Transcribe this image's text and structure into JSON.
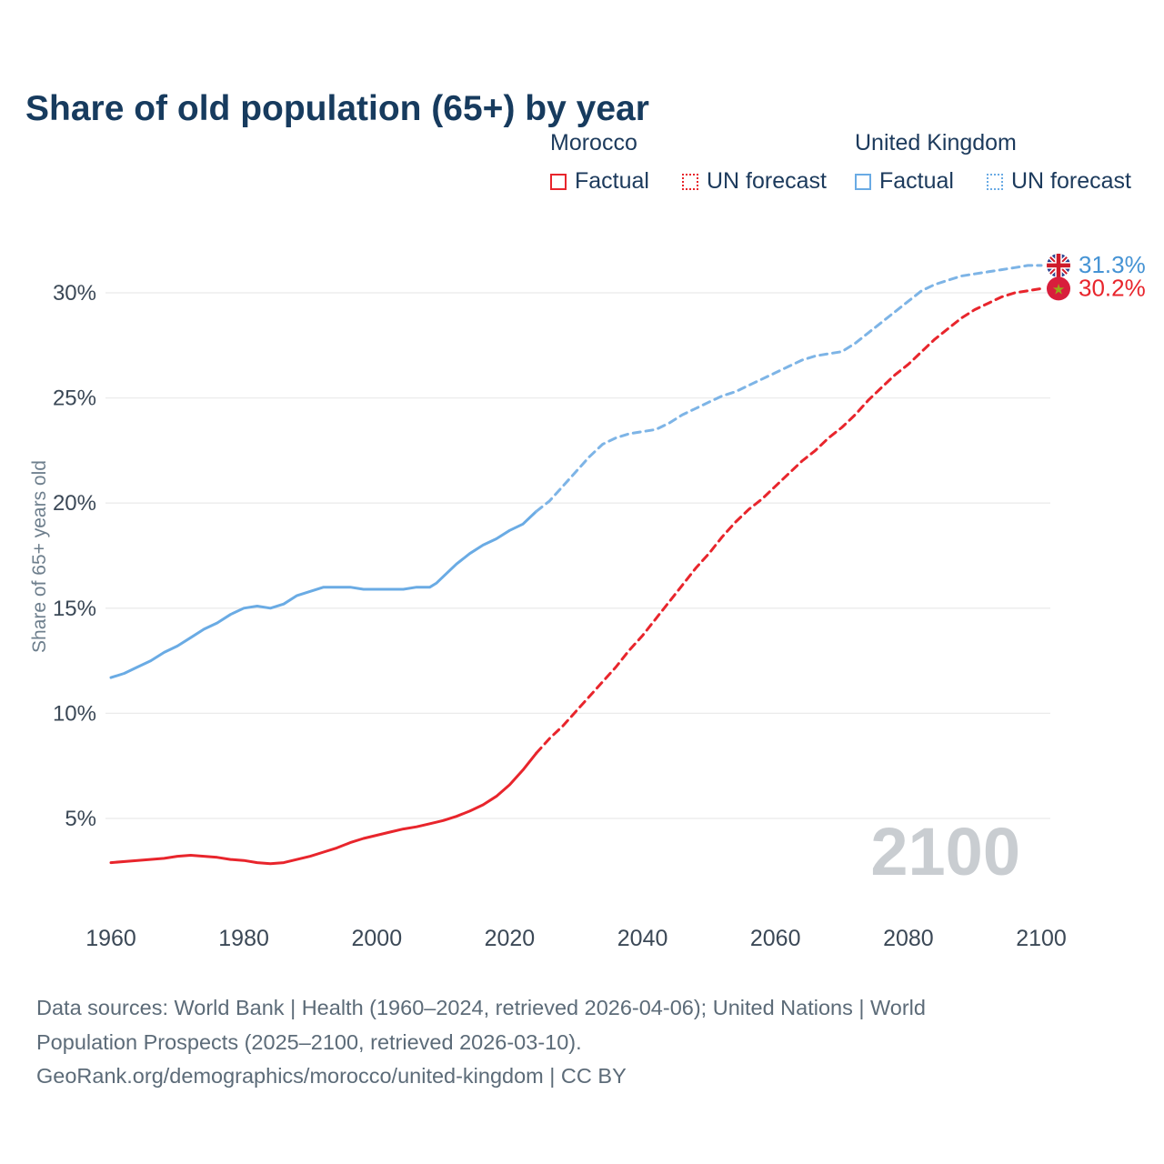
{
  "title": "Share of old population (65+) by year",
  "watermark": "2100",
  "legend": {
    "groups": [
      {
        "name": "Morocco",
        "color": "#e8252c",
        "items": [
          {
            "label": "Factual",
            "dashed": false
          },
          {
            "label": "UN forecast",
            "dashed": true
          }
        ]
      },
      {
        "name": "United Kingdom",
        "color": "#6aabe4",
        "items": [
          {
            "label": "Factual",
            "dashed": false
          },
          {
            "label": "UN forecast",
            "dashed": true
          }
        ]
      }
    ]
  },
  "footer": {
    "lines": [
      "Data sources: World Bank | Health (1960–2024, retrieved 2026-04-06); United Nations | World",
      "Population Prospects (2025–2100, retrieved 2026-03-10).",
      "GeoRank.org/demographics/morocco/united-kingdom | CC BY"
    ]
  },
  "chart_data": {
    "type": "line",
    "title": "Share of old population (65+) by year",
    "xlabel": "",
    "ylabel": "Share of 65+ years old",
    "xlim": [
      1960,
      2100
    ],
    "ylim": [
      2,
      32
    ],
    "xticks": [
      1960,
      1980,
      2000,
      2020,
      2040,
      2060,
      2080,
      2100
    ],
    "yticks": [
      5,
      10,
      15,
      20,
      25,
      30
    ],
    "grid": "horizontal",
    "legend_position": "top-right",
    "series": [
      {
        "id": "uk-factual",
        "name": "United Kingdom Factual",
        "color": "#6aabe4",
        "dashed": false,
        "points": [
          [
            1960,
            11.7
          ],
          [
            1962,
            11.9
          ],
          [
            1964,
            12.2
          ],
          [
            1966,
            12.5
          ],
          [
            1968,
            12.9
          ],
          [
            1970,
            13.2
          ],
          [
            1972,
            13.6
          ],
          [
            1974,
            14.0
          ],
          [
            1976,
            14.3
          ],
          [
            1978,
            14.7
          ],
          [
            1980,
            15.0
          ],
          [
            1982,
            15.1
          ],
          [
            1984,
            15.0
          ],
          [
            1986,
            15.2
          ],
          [
            1988,
            15.6
          ],
          [
            1990,
            15.8
          ],
          [
            1992,
            16.0
          ],
          [
            1994,
            16.0
          ],
          [
            1996,
            16.0
          ],
          [
            1998,
            15.9
          ],
          [
            2000,
            15.9
          ],
          [
            2002,
            15.9
          ],
          [
            2004,
            15.9
          ],
          [
            2006,
            16.0
          ],
          [
            2008,
            16.0
          ],
          [
            2009,
            16.2
          ],
          [
            2010,
            16.5
          ],
          [
            2012,
            17.1
          ],
          [
            2014,
            17.6
          ],
          [
            2016,
            18.0
          ],
          [
            2018,
            18.3
          ],
          [
            2020,
            18.7
          ],
          [
            2022,
            19.0
          ],
          [
            2024,
            19.6
          ]
        ]
      },
      {
        "id": "uk-forecast",
        "name": "United Kingdom UN forecast",
        "color": "#7db4e6",
        "dashed": true,
        "points": [
          [
            2024,
            19.6
          ],
          [
            2026,
            20.1
          ],
          [
            2028,
            20.8
          ],
          [
            2030,
            21.5
          ],
          [
            2032,
            22.2
          ],
          [
            2034,
            22.8
          ],
          [
            2036,
            23.1
          ],
          [
            2038,
            23.3
          ],
          [
            2040,
            23.4
          ],
          [
            2042,
            23.5
          ],
          [
            2044,
            23.8
          ],
          [
            2046,
            24.2
          ],
          [
            2048,
            24.5
          ],
          [
            2050,
            24.8
          ],
          [
            2052,
            25.1
          ],
          [
            2054,
            25.3
          ],
          [
            2056,
            25.6
          ],
          [
            2058,
            25.9
          ],
          [
            2060,
            26.2
          ],
          [
            2062,
            26.5
          ],
          [
            2064,
            26.8
          ],
          [
            2066,
            27.0
          ],
          [
            2068,
            27.1
          ],
          [
            2070,
            27.2
          ],
          [
            2072,
            27.6
          ],
          [
            2074,
            28.1
          ],
          [
            2076,
            28.6
          ],
          [
            2078,
            29.1
          ],
          [
            2080,
            29.6
          ],
          [
            2082,
            30.1
          ],
          [
            2084,
            30.4
          ],
          [
            2086,
            30.6
          ],
          [
            2088,
            30.8
          ],
          [
            2090,
            30.9
          ],
          [
            2092,
            31.0
          ],
          [
            2094,
            31.1
          ],
          [
            2096,
            31.2
          ],
          [
            2098,
            31.3
          ],
          [
            2100,
            31.3
          ]
        ]
      },
      {
        "id": "morocco-factual",
        "name": "Morocco Factual",
        "color": "#e8252c",
        "dashed": false,
        "points": [
          [
            1960,
            2.9
          ],
          [
            1964,
            3.0
          ],
          [
            1968,
            3.1
          ],
          [
            1970,
            3.2
          ],
          [
            1972,
            3.25
          ],
          [
            1974,
            3.2
          ],
          [
            1976,
            3.15
          ],
          [
            1978,
            3.05
          ],
          [
            1980,
            3.0
          ],
          [
            1982,
            2.9
          ],
          [
            1984,
            2.85
          ],
          [
            1986,
            2.9
          ],
          [
            1988,
            3.05
          ],
          [
            1990,
            3.2
          ],
          [
            1992,
            3.4
          ],
          [
            1994,
            3.6
          ],
          [
            1996,
            3.85
          ],
          [
            1998,
            4.05
          ],
          [
            2000,
            4.2
          ],
          [
            2002,
            4.35
          ],
          [
            2004,
            4.5
          ],
          [
            2006,
            4.6
          ],
          [
            2008,
            4.75
          ],
          [
            2010,
            4.9
          ],
          [
            2012,
            5.1
          ],
          [
            2014,
            5.35
          ],
          [
            2016,
            5.65
          ],
          [
            2018,
            6.05
          ],
          [
            2020,
            6.6
          ],
          [
            2022,
            7.3
          ],
          [
            2024,
            8.1
          ]
        ]
      },
      {
        "id": "morocco-forecast",
        "name": "Morocco UN forecast",
        "color": "#e8252c",
        "dashed": true,
        "points": [
          [
            2024,
            8.1
          ],
          [
            2026,
            8.8
          ],
          [
            2028,
            9.4
          ],
          [
            2030,
            10.1
          ],
          [
            2032,
            10.8
          ],
          [
            2034,
            11.5
          ],
          [
            2036,
            12.2
          ],
          [
            2038,
            13.0
          ],
          [
            2040,
            13.7
          ],
          [
            2042,
            14.5
          ],
          [
            2044,
            15.3
          ],
          [
            2046,
            16.1
          ],
          [
            2048,
            16.9
          ],
          [
            2050,
            17.6
          ],
          [
            2052,
            18.4
          ],
          [
            2054,
            19.1
          ],
          [
            2056,
            19.7
          ],
          [
            2058,
            20.2
          ],
          [
            2060,
            20.8
          ],
          [
            2062,
            21.4
          ],
          [
            2064,
            22.0
          ],
          [
            2066,
            22.5
          ],
          [
            2068,
            23.1
          ],
          [
            2070,
            23.6
          ],
          [
            2072,
            24.2
          ],
          [
            2074,
            24.9
          ],
          [
            2076,
            25.5
          ],
          [
            2078,
            26.1
          ],
          [
            2080,
            26.6
          ],
          [
            2082,
            27.2
          ],
          [
            2084,
            27.8
          ],
          [
            2086,
            28.3
          ],
          [
            2088,
            28.8
          ],
          [
            2090,
            29.2
          ],
          [
            2092,
            29.5
          ],
          [
            2094,
            29.8
          ],
          [
            2096,
            30.0
          ],
          [
            2098,
            30.1
          ],
          [
            2100,
            30.2
          ]
        ]
      }
    ],
    "end_markers": [
      {
        "flag": "uk",
        "label": "31.3%",
        "value": 31.3,
        "color": "#4593d4"
      },
      {
        "flag": "morocco",
        "label": "30.2%",
        "value": 30.2,
        "color": "#e8252c"
      }
    ]
  }
}
